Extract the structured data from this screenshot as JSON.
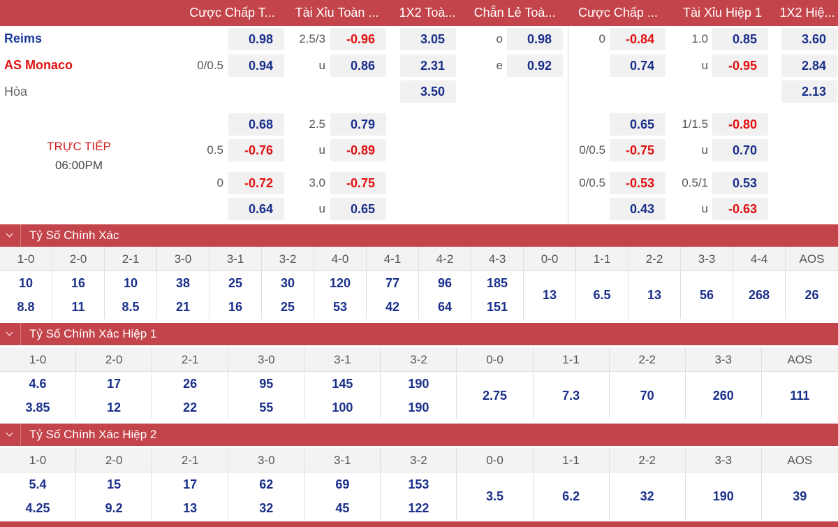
{
  "header": {
    "cols": [
      "Cược Chấp T...",
      "Tài Xỉu Toàn ...",
      "1X2 Toà...",
      "Chẵn Lẻ Toà...",
      "Cược Chấp ...",
      "Tài Xỉu Hiệp 1",
      "1X2 Hiệ..."
    ]
  },
  "match": {
    "home": "Reims",
    "away": "AS Monaco",
    "draw": "Hòa",
    "status": "TRỰC TIẾP",
    "time": "06:00PM"
  },
  "odds": {
    "r1": {
      "ah_ft_home": "0.98",
      "ou_ft_line": "2.5/3",
      "ou_ft_over": "-0.96",
      "x12_ft_home": "3.05",
      "oe_o_label": "o",
      "oe_odd": "0.98",
      "ah_h1_line": "0",
      "ah_h1_home": "-0.84",
      "ou_h1_line": "1.0",
      "ou_h1_over": "0.85",
      "x12_h1_home": "3.60"
    },
    "r2": {
      "ah_ft_line": "0/0.5",
      "ah_ft_away": "0.94",
      "ou_ft_u_label": "u",
      "ou_ft_under": "0.86",
      "x12_ft_away": "2.31",
      "oe_e_label": "e",
      "oe_even": "0.92",
      "ah_h1_away": "0.74",
      "ou_h1_u_label": "u",
      "ou_h1_under": "-0.95",
      "x12_h1_away": "2.84"
    },
    "r3": {
      "x12_ft_draw": "3.50",
      "x12_h1_draw": "2.13"
    },
    "r4": {
      "ah_ft_home": "0.68",
      "ou_ft_line": "2.5",
      "ou_ft_over": "0.79",
      "ah_h1_home": "0.65",
      "ou_h1_line": "1/1.5",
      "ou_h1_over": "-0.80"
    },
    "r5": {
      "ah_ft_line": "0.5",
      "ah_ft_away": "-0.76",
      "ou_ft_u_label": "u",
      "ou_ft_under": "-0.89",
      "ah_h1_line": "0/0.5",
      "ah_h1_away": "-0.75",
      "ou_h1_u_label": "u",
      "ou_h1_under": "0.70"
    },
    "r6": {
      "ah_ft_line": "0",
      "ah_ft_home": "-0.72",
      "ou_ft_line": "3.0",
      "ou_ft_over": "-0.75",
      "ah_h1_line": "0/0.5",
      "ah_h1_home": "-0.53",
      "ou_h1_line": "0.5/1",
      "ou_h1_over": "0.53"
    },
    "r7": {
      "ah_ft_away": "0.64",
      "ou_ft_u_label": "u",
      "ou_ft_under": "0.65",
      "ah_h1_away": "0.43",
      "ou_h1_u_label": "u",
      "ou_h1_under": "-0.63"
    }
  },
  "correct_score": {
    "title": "Tỷ Số Chính Xác",
    "cols": [
      {
        "score": "1-0",
        "home": "10",
        "away": "8.8"
      },
      {
        "score": "2-0",
        "home": "16",
        "away": "11"
      },
      {
        "score": "2-1",
        "home": "10",
        "away": "8.5"
      },
      {
        "score": "3-0",
        "home": "38",
        "away": "21"
      },
      {
        "score": "3-1",
        "home": "25",
        "away": "16"
      },
      {
        "score": "3-2",
        "home": "30",
        "away": "25"
      },
      {
        "score": "4-0",
        "home": "120",
        "away": "53"
      },
      {
        "score": "4-1",
        "home": "77",
        "away": "42"
      },
      {
        "score": "4-2",
        "home": "96",
        "away": "64"
      },
      {
        "score": "4-3",
        "home": "185",
        "away": "151"
      },
      {
        "score": "0-0",
        "single": "13"
      },
      {
        "score": "1-1",
        "single": "6.5"
      },
      {
        "score": "2-2",
        "single": "13"
      },
      {
        "score": "3-3",
        "single": "56"
      },
      {
        "score": "4-4",
        "single": "268"
      },
      {
        "score": "AOS",
        "single": "26"
      }
    ]
  },
  "correct_score_h1": {
    "title": "Tỷ Số Chính Xác Hiệp 1",
    "cols": [
      {
        "score": "1-0",
        "home": "4.6",
        "away": "3.85"
      },
      {
        "score": "2-0",
        "home": "17",
        "away": "12"
      },
      {
        "score": "2-1",
        "home": "26",
        "away": "22"
      },
      {
        "score": "3-0",
        "home": "95",
        "away": "55"
      },
      {
        "score": "3-1",
        "home": "145",
        "away": "100"
      },
      {
        "score": "3-2",
        "home": "190",
        "away": "190"
      },
      {
        "score": "0-0",
        "single": "2.75"
      },
      {
        "score": "1-1",
        "single": "7.3"
      },
      {
        "score": "2-2",
        "single": "70"
      },
      {
        "score": "3-3",
        "single": "260"
      },
      {
        "score": "AOS",
        "single": "111"
      }
    ]
  },
  "correct_score_h2": {
    "title": "Tỷ Số Chính Xác Hiệp 2",
    "cols": [
      {
        "score": "1-0",
        "home": "5.4",
        "away": "4.25"
      },
      {
        "score": "2-0",
        "home": "15",
        "away": "9.2"
      },
      {
        "score": "2-1",
        "home": "17",
        "away": "13"
      },
      {
        "score": "3-0",
        "home": "62",
        "away": "32"
      },
      {
        "score": "3-1",
        "home": "69",
        "away": "45"
      },
      {
        "score": "3-2",
        "home": "153",
        "away": "122"
      },
      {
        "score": "0-0",
        "single": "3.5"
      },
      {
        "score": "1-1",
        "single": "6.2"
      },
      {
        "score": "2-2",
        "single": "32"
      },
      {
        "score": "3-3",
        "single": "190"
      },
      {
        "score": "AOS",
        "single": "39"
      }
    ]
  }
}
